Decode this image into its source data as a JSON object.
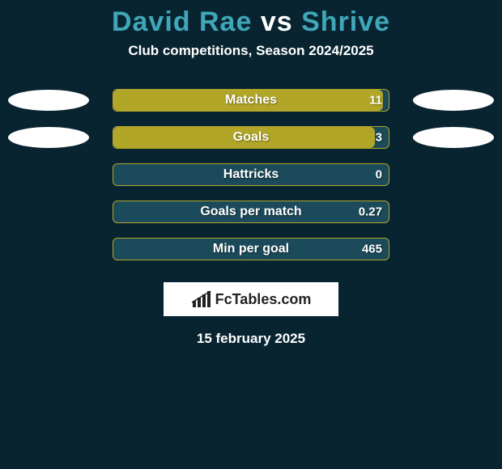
{
  "colors": {
    "background": "#092431",
    "bar_fill": "#b2a629",
    "bar_track": "#1b4a5a",
    "title_player": "#3fa7b8",
    "title_vs": "#ffffff",
    "text": "#ffffff",
    "logo_bg": "#ffffff",
    "ellipse": "#ffffff"
  },
  "title": {
    "player1": "David Rae",
    "vs": "vs",
    "player2": "Shrive"
  },
  "subtitle": "Club competitions, Season 2024/2025",
  "stats": [
    {
      "label": "Matches",
      "value": "11",
      "fill_pct": 98,
      "show_left_ellipse": true,
      "show_right_ellipse": true
    },
    {
      "label": "Goals",
      "value": "3",
      "fill_pct": 95,
      "show_left_ellipse": true,
      "show_right_ellipse": true
    },
    {
      "label": "Hattricks",
      "value": "0",
      "fill_pct": 0,
      "show_left_ellipse": false,
      "show_right_ellipse": false
    },
    {
      "label": "Goals per match",
      "value": "0.27",
      "fill_pct": 0,
      "show_left_ellipse": false,
      "show_right_ellipse": false
    },
    {
      "label": "Min per goal",
      "value": "465",
      "fill_pct": 0,
      "show_left_ellipse": false,
      "show_right_ellipse": false
    }
  ],
  "logo_text": "FcTables.com",
  "date": "15 february 2025"
}
